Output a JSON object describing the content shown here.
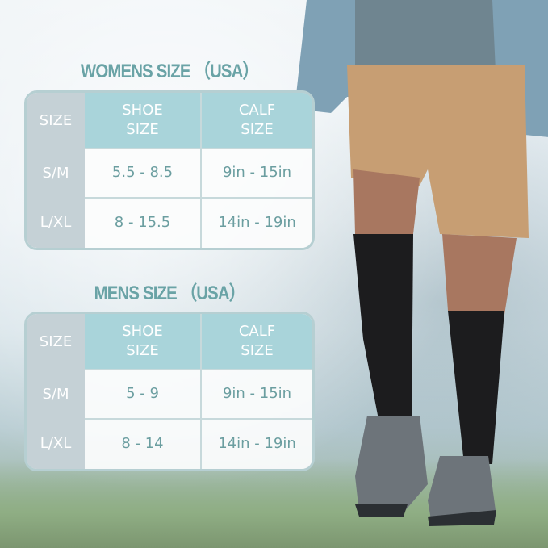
{
  "womens": {
    "title": "WOMENS SIZE （USA）",
    "headers": [
      "SIZE",
      "SHOE\nSIZE",
      "CALF\nSIZE"
    ],
    "rows": [
      {
        "size": "S/M",
        "shoe": "5.5  -  8.5",
        "calf": "9in  -  15in"
      },
      {
        "size": "L/XL",
        "shoe": "8  -  15.5",
        "calf": "14in  -  19in"
      }
    ]
  },
  "mens": {
    "title": "MENS SIZE （USA）",
    "headers": [
      "SIZE",
      "SHOE\nSIZE",
      "CALF\nSIZE"
    ],
    "rows": [
      {
        "size": "S/M",
        "shoe": "5  -  9",
        "calf": "9in  -  15in"
      },
      {
        "size": "L/XL",
        "shoe": "8  -  14",
        "calf": "14in  -  19in"
      }
    ]
  },
  "colors": {
    "accent": "#6aa3a6",
    "header": "#a9d4da",
    "size_col": "#c5d1d6"
  }
}
